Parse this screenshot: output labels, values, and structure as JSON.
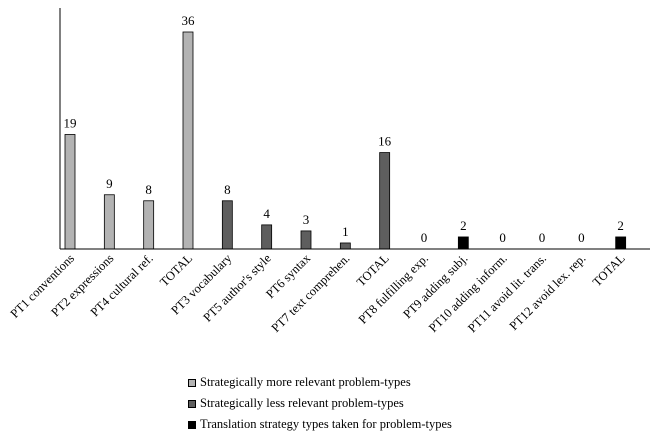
{
  "chart_data": {
    "type": "bar",
    "title": "",
    "xlabel": "",
    "ylabel": "",
    "ylim": [
      0,
      40
    ],
    "grid": false,
    "legend_position": "bottom",
    "categories": [
      "PT1 conventions",
      "PT2 expressions",
      "PT4 cultural ref.",
      "TOTAL",
      "PT3 vocabulary",
      "PT5 author's style",
      "PT6 syntax",
      "PT7 text comprehen.",
      "TOTAL",
      "PT8 fulfilling exp.",
      "PT9 adding subj.",
      "PT10 adding inform.",
      "PT11 avoid lit. trans.",
      "PT12 avoid lex. rep.",
      "TOTAL"
    ],
    "values": [
      19,
      9,
      8,
      36,
      8,
      4,
      3,
      1,
      16,
      0,
      2,
      0,
      0,
      0,
      2
    ],
    "data_labels": [
      "19",
      "9",
      "8",
      "36",
      "8",
      "4",
      "3",
      "1",
      "16",
      "0",
      "2",
      "0",
      "0",
      "0",
      "2"
    ],
    "groups": [
      0,
      0,
      0,
      0,
      1,
      1,
      1,
      1,
      1,
      2,
      2,
      2,
      2,
      2,
      2
    ],
    "series": [
      {
        "name": "Strategically more relevant problem-types",
        "color": "#b3b3b3"
      },
      {
        "name": "Strategically less relevant problem-types",
        "color": "#5e5e5e"
      },
      {
        "name": "Translation strategy types taken for problem-types",
        "color": "#000000"
      }
    ]
  }
}
